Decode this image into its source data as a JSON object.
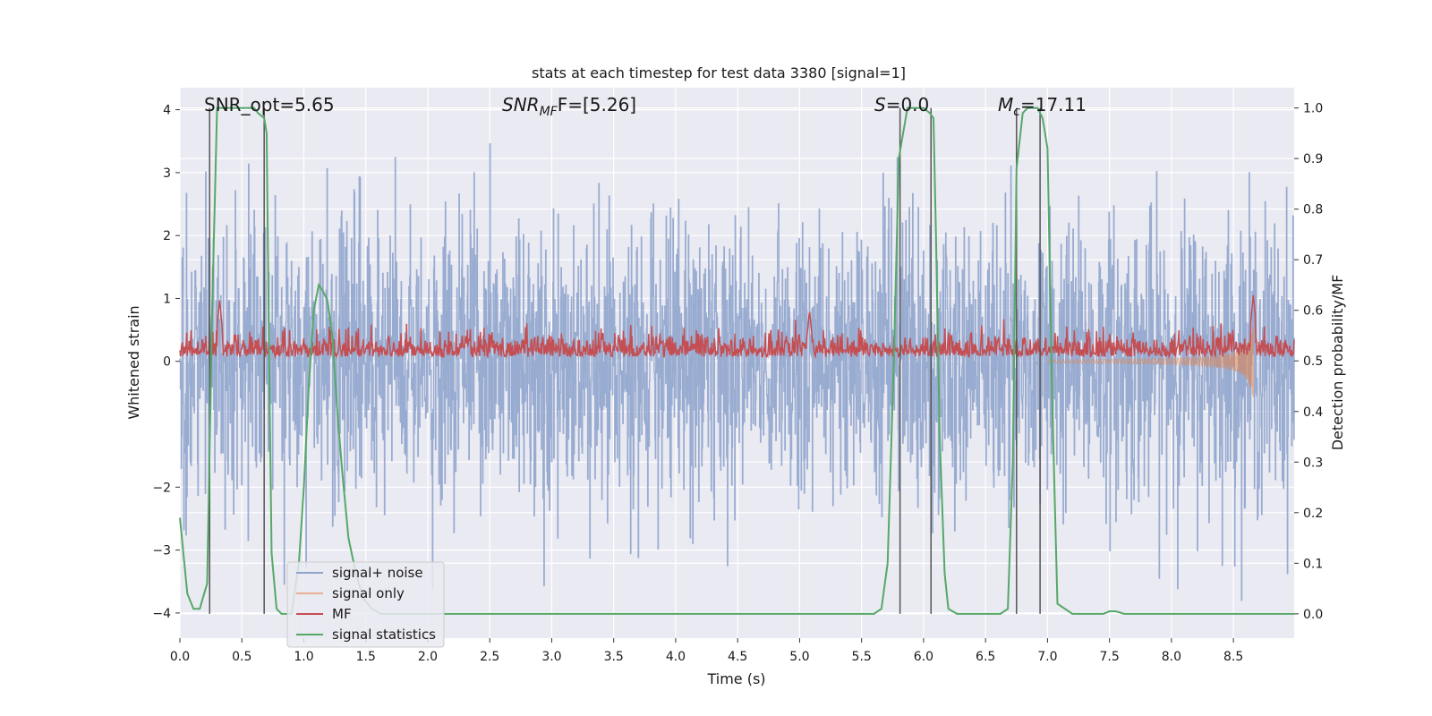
{
  "chart_data": {
    "type": "line",
    "title": "stats at each timestep for test data 3380 [signal=1]",
    "xlabel": "Time (s)",
    "ylabel_left": "Whitened strain",
    "ylabel_right": "Detection probability/MF",
    "xlim": [
      0.0,
      8.99
    ],
    "ylim_left": [
      -4.4,
      4.35
    ],
    "ylim_right": [
      -0.048,
      1.04
    ],
    "xticks": [
      "0.0",
      "0.5",
      "1.0",
      "1.5",
      "2.0",
      "2.5",
      "3.0",
      "3.5",
      "4.0",
      "4.5",
      "5.0",
      "5.5",
      "6.0",
      "6.5",
      "7.0",
      "7.5",
      "8.0",
      "8.5"
    ],
    "yticks_left": [
      "4",
      "3",
      "2",
      "1",
      "0",
      "−2",
      "−3",
      "−4"
    ],
    "yticks_right": [
      "1.0",
      "0.9",
      "0.8",
      "0.7",
      "0.6",
      "0.5",
      "0.4",
      "0.3",
      "0.2",
      "0.1",
      "0.0"
    ],
    "grid": true,
    "legend_position": "lower-left",
    "annotations": {
      "snr_opt": "SNR_opt=5.65",
      "snr_mf_sym": "SNR",
      "snr_mf_sub": "MF",
      "snr_mf_rest": "F=[5.26]",
      "s_sym": "S",
      "s_rest": "=0.0",
      "mc_sym": "M",
      "mc_sub": "c",
      "mc_rest": "=17.11"
    },
    "colors": {
      "signal_noise": "#8fa4cc",
      "signal_only": "#dd8452",
      "mf": "#c44e52",
      "signal_statistics": "#55a868",
      "background": "#eaeaf2",
      "vlines": "#555555"
    },
    "series": [
      {
        "name": "signal+ noise",
        "description_level": "white noise, std ~1.1 (left axis)"
      },
      {
        "name": "signal only",
        "chirp": {
          "start_time": 7.0,
          "end_time": 8.66,
          "peak_amplitude": 1.0
        }
      },
      {
        "name": "MF",
        "baseline_right_axis": 0.52,
        "peaks_right_axis": [
          [
            0.32,
            0.62
          ],
          [
            5.08,
            0.6
          ],
          [
            8.66,
            0.63
          ]
        ]
      },
      {
        "name": "signal statistics",
        "x": [
          0.0,
          0.06,
          0.11,
          0.16,
          0.22,
          0.26,
          0.3,
          0.4,
          0.5,
          0.6,
          0.63,
          0.68,
          0.7,
          0.72,
          0.74,
          0.78,
          0.82,
          0.9,
          0.96,
          1.0,
          1.04,
          1.08,
          1.12,
          1.15,
          1.19,
          1.23,
          1.27,
          1.31,
          1.36,
          1.42,
          1.48,
          1.55,
          1.62,
          1.7,
          1.8,
          2.0,
          3.0,
          4.0,
          5.0,
          5.6,
          5.66,
          5.71,
          5.76,
          5.8,
          5.87,
          5.92,
          6.0,
          6.05,
          6.08,
          6.1,
          6.13,
          6.17,
          6.2,
          6.27,
          6.4,
          6.5,
          6.62,
          6.68,
          6.72,
          6.75,
          6.8,
          6.84,
          6.87,
          6.92,
          6.96,
          7.0,
          7.04,
          7.08,
          7.2,
          7.45,
          7.5,
          7.55,
          7.62,
          8.0,
          8.99
        ],
        "y": [
          0.19,
          0.04,
          0.01,
          0.01,
          0.06,
          0.6,
          1.0,
          1.0,
          1.0,
          1.0,
          0.99,
          0.98,
          0.95,
          0.5,
          0.12,
          0.01,
          0.0,
          0.0,
          0.1,
          0.25,
          0.45,
          0.6,
          0.65,
          0.64,
          0.62,
          0.55,
          0.4,
          0.28,
          0.15,
          0.08,
          0.03,
          0.01,
          0.0,
          0.0,
          0.0,
          0.0,
          0.0,
          0.0,
          0.0,
          0.0,
          0.01,
          0.1,
          0.5,
          0.9,
          1.0,
          1.0,
          1.0,
          0.99,
          0.98,
          0.75,
          0.35,
          0.08,
          0.01,
          0.0,
          0.0,
          0.0,
          0.0,
          0.01,
          0.3,
          0.88,
          0.99,
          1.0,
          1.0,
          1.0,
          0.98,
          0.92,
          0.4,
          0.02,
          0.0,
          0.0,
          0.005,
          0.005,
          0.0,
          0.0,
          0.0
        ]
      }
    ],
    "vertical_lines_x": [
      0.24,
      0.68,
      5.81,
      6.06,
      6.75,
      6.94
    ]
  }
}
